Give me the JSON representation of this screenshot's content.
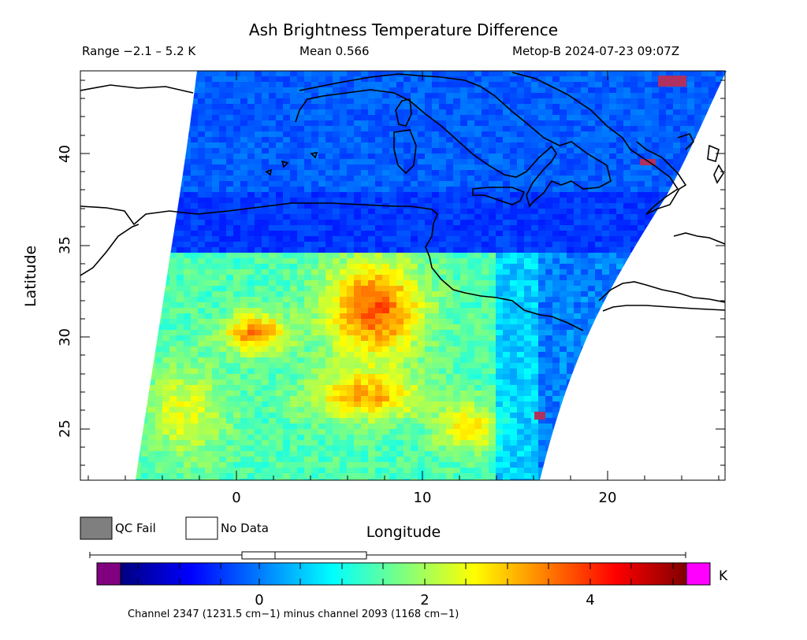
{
  "header": {
    "title": "Ash Brightness Temperature Difference",
    "range": "Range −2.1 – 5.2 K",
    "mean": "Mean 0.566",
    "satellite_time": "Metop-B 2024-07-23 09:07Z"
  },
  "axes": {
    "ylabel": "Latitude",
    "xlabel": "Longitude",
    "lat_ticks": [
      "25",
      "30",
      "35",
      "40"
    ],
    "lon_ticks": [
      "0",
      "10",
      "20"
    ],
    "lat_range": [
      22,
      44.5
    ],
    "lon_range": [
      -8.5,
      26.5
    ]
  },
  "legend": {
    "qc_fail": "QC Fail",
    "no_data": "No Data",
    "qc_fail_color": "#7f7f7f"
  },
  "colorbar": {
    "ticks": [
      "0",
      "2",
      "4"
    ],
    "unit": "K",
    "range": [
      -1.2,
      5.0
    ],
    "low_color": "#800080",
    "high_color": "#ff00ff",
    "stats_box": {
      "min": -2.1,
      "q1": 0.0,
      "median": 0.2,
      "q3": 1.3,
      "max": 5.2
    }
  },
  "footer": {
    "channel_text": "Channel 2347 (1231.5 cm−1) minus channel 2093 (1168 cm−1)"
  }
}
